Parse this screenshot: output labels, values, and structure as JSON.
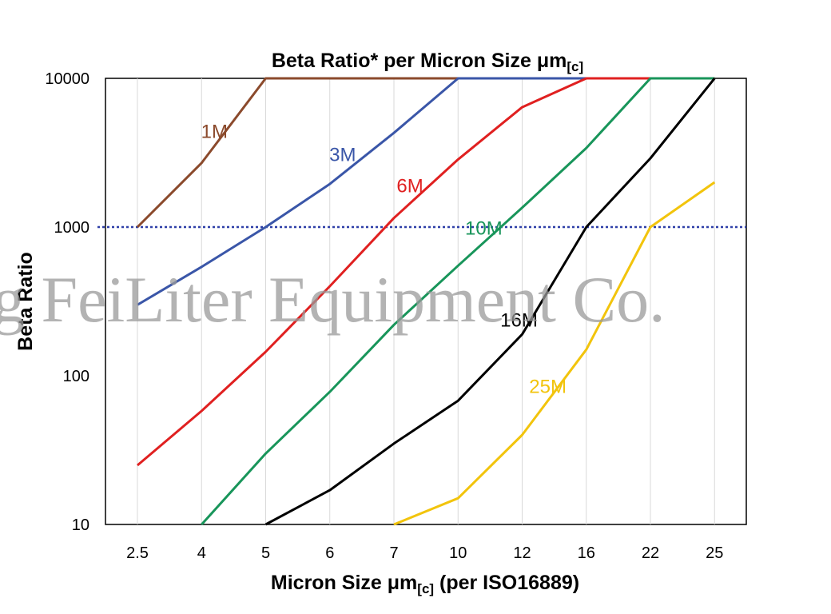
{
  "chart_data": {
    "type": "line",
    "title": "Beta Ratio* per Micron Size μm",
    "title_subscript": "[c]",
    "xlabel": "Micron Size μm",
    "xlabel_subscript": "[c]",
    "xlabel_suffix": " (per ISO16889)",
    "ylabel": "Beta Ratio",
    "y_scale": "log",
    "ylim": [
      10,
      10000
    ],
    "yticks": [
      "10",
      "100",
      "1000",
      "10000"
    ],
    "categories": [
      "2.5",
      "4",
      "5",
      "6",
      "7",
      "10",
      "12",
      "16",
      "22",
      "25"
    ],
    "reference_line": {
      "y": 1000,
      "style": "dotted",
      "color": "#2f3fa8"
    },
    "watermark": "g FeiLiter Equipment Co.",
    "series": [
      {
        "name": "1M",
        "color": "#8b4a2c",
        "values": [
          1000,
          2700,
          10000,
          10000,
          10000,
          10000,
          10000,
          10000,
          10000,
          10000
        ]
      },
      {
        "name": "3M",
        "color": "#3a56a8",
        "values": [
          300,
          540,
          1000,
          1950,
          4300,
          10000,
          10000,
          10000,
          10000,
          10000
        ]
      },
      {
        "name": "6M",
        "color": "#e02020",
        "values": [
          25,
          58,
          145,
          400,
          1150,
          2850,
          6400,
          10000,
          10000,
          10000
        ]
      },
      {
        "name": "10M",
        "color": "#18955a",
        "values": [
          null,
          10,
          30,
          78,
          220,
          550,
          1350,
          3400,
          10000,
          10000
        ]
      },
      {
        "name": "16M",
        "color": "#000000",
        "values": [
          null,
          null,
          10,
          17,
          35,
          68,
          190,
          1000,
          2900,
          10000
        ]
      },
      {
        "name": "25M",
        "color": "#f2c40c",
        "values": [
          null,
          null,
          null,
          null,
          10,
          15,
          40,
          150,
          1000,
          2000
        ]
      }
    ]
  }
}
